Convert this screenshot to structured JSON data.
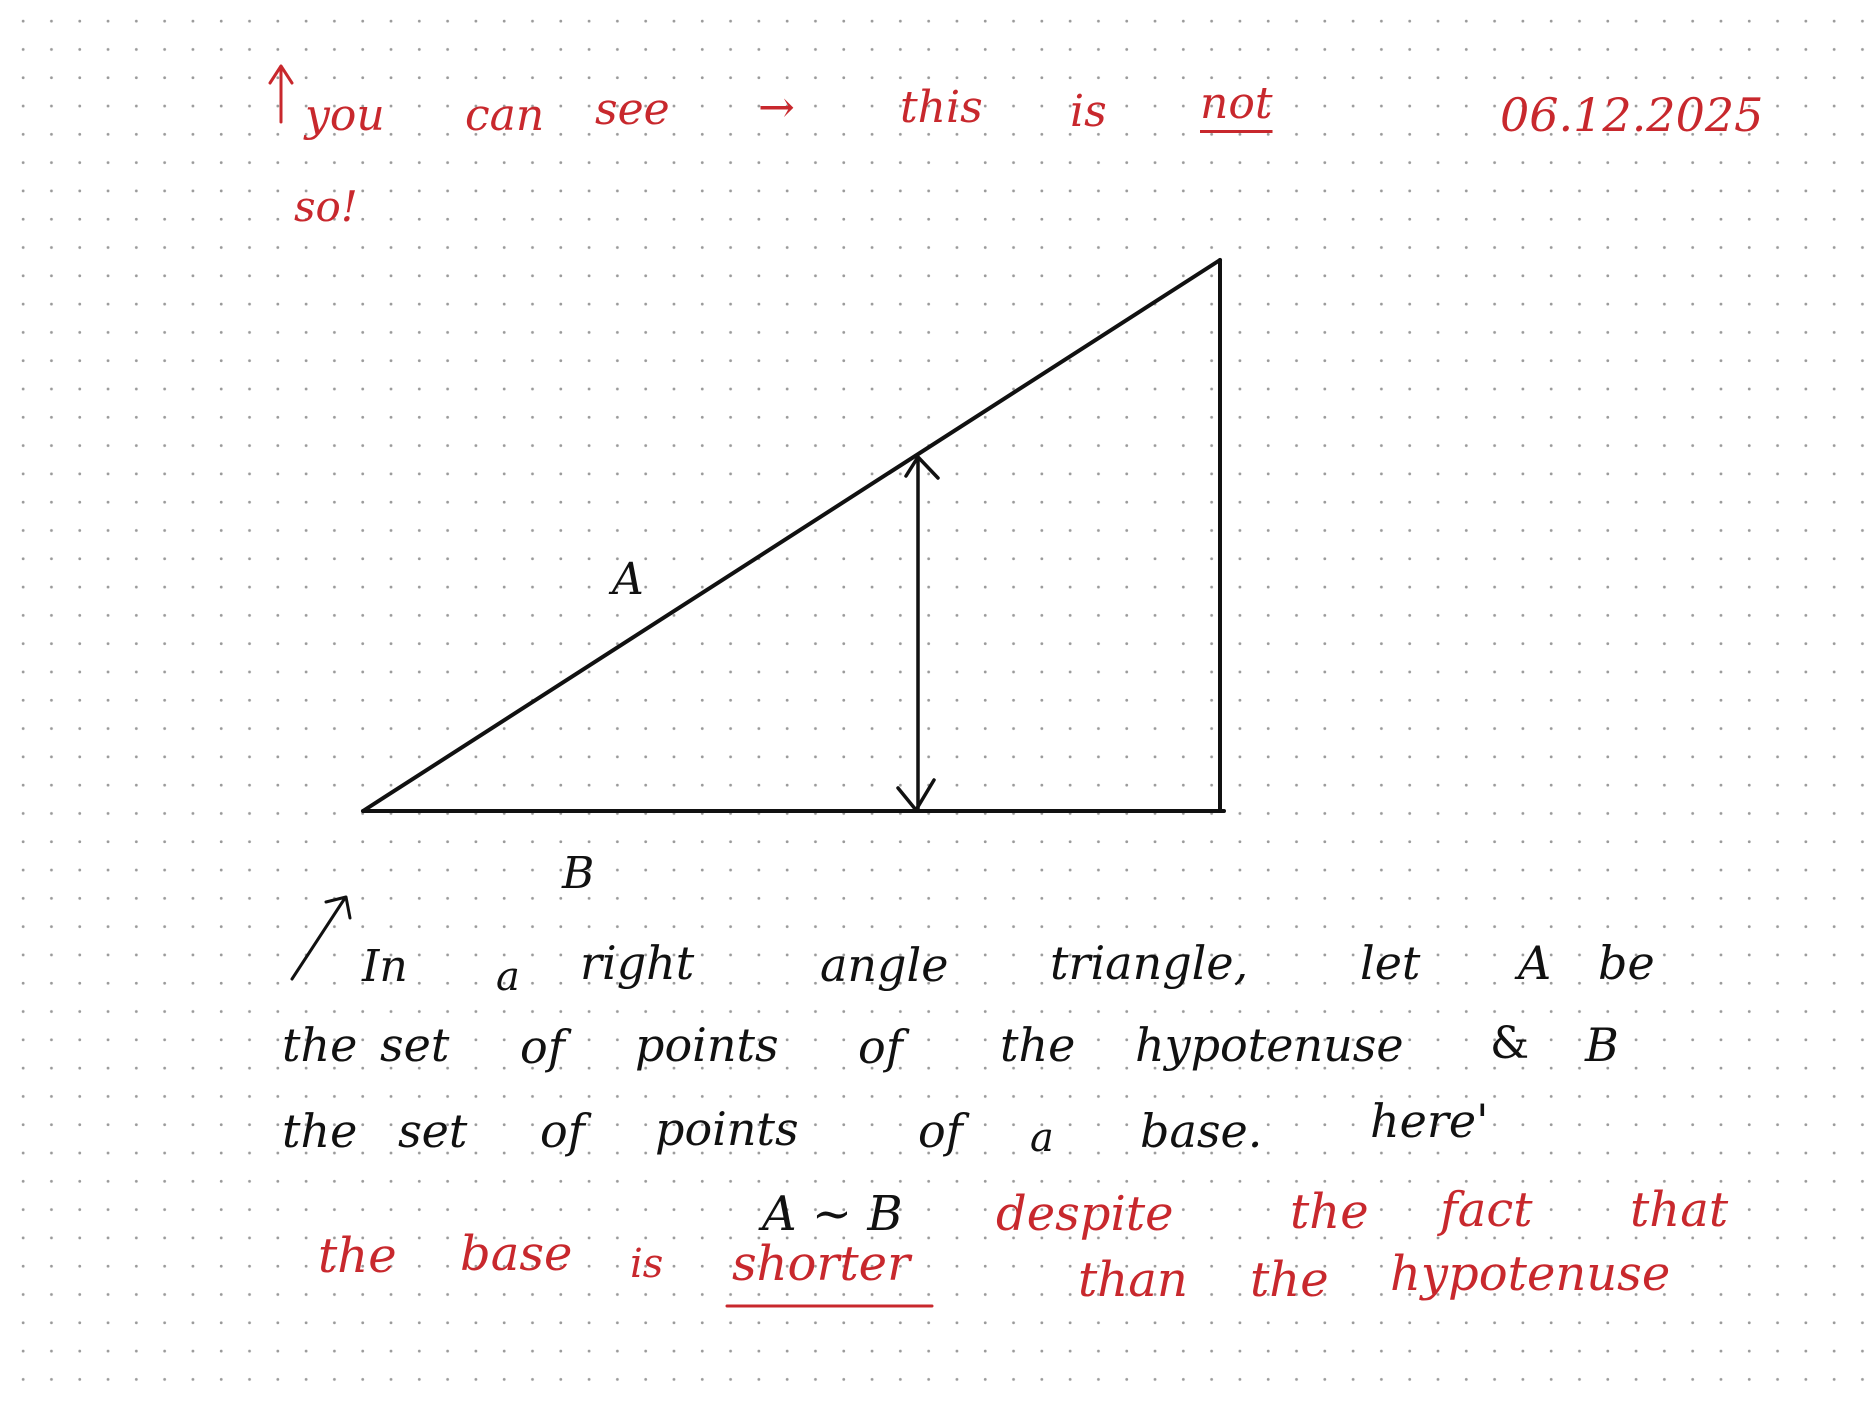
{
  "colors": {
    "ink": "#111111",
    "red_ink": "#c8282d",
    "dot_grid": "#9a9a9a"
  },
  "header_note": {
    "words": [
      "you",
      "can",
      "see",
      "this",
      "is",
      "not",
      "so!"
    ],
    "arrow_glyph": "→",
    "date": "06.12.2025"
  },
  "figure": {
    "hypotenuse_label": "A",
    "base_label": "B"
  },
  "statement": {
    "line1": [
      "In",
      "a",
      "right",
      "angle",
      "triangle,",
      "let",
      "A",
      "be"
    ],
    "line2": [
      "the",
      "set",
      "of",
      "points",
      "of",
      "the",
      "hypotenuse",
      "&",
      "B"
    ],
    "line3": [
      "the",
      "set",
      "of",
      "points",
      "of",
      "a",
      "base.",
      "here'"
    ]
  },
  "conclusion": {
    "relation": "A ~ B",
    "words": [
      "the",
      "base",
      "is",
      "shorter",
      "despite",
      "the",
      "fact",
      "that",
      "than",
      "the",
      "hypotenuse"
    ]
  }
}
